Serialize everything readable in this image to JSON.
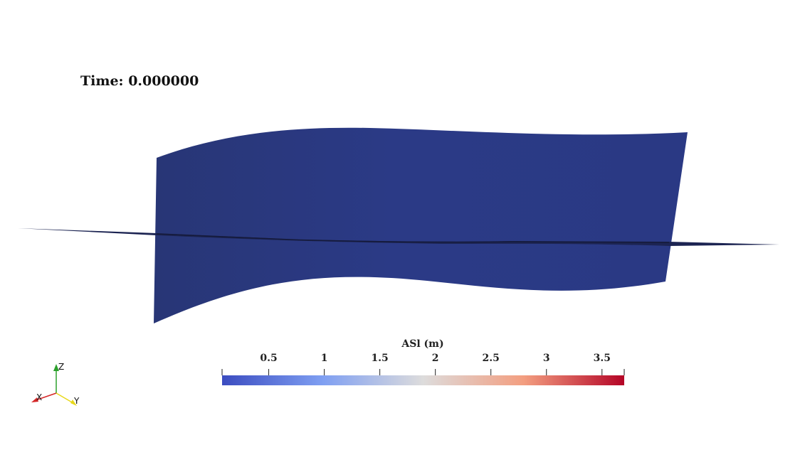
{
  "time_label": {
    "prefix": "Time:",
    "value": "0.000000"
  },
  "colorbar": {
    "title": "ASl (m)",
    "range": [
      0.08,
      3.7
    ],
    "ticks": [
      {
        "value": 0.5,
        "label": "0.5"
      },
      {
        "value": 1,
        "label": "1"
      },
      {
        "value": 1.5,
        "label": "1.5"
      },
      {
        "value": 2,
        "label": "2"
      },
      {
        "value": 2.5,
        "label": "2.5"
      },
      {
        "value": 3,
        "label": "3"
      },
      {
        "value": 3.5,
        "label": "3.5"
      }
    ],
    "colormap": "cool-to-warm",
    "colors": {
      "low": "#3b4cc0",
      "mid": "#dddddd",
      "high": "#b40426"
    }
  },
  "surface": {
    "color": "#2a3882",
    "edge_color": "#1a1f3e"
  },
  "orientation_axes": {
    "z_label": "Z",
    "x_label": "X",
    "y_label": "Y",
    "colors": {
      "x": "#d62728",
      "y": "#e8d81a",
      "z": "#2ca02c"
    }
  }
}
